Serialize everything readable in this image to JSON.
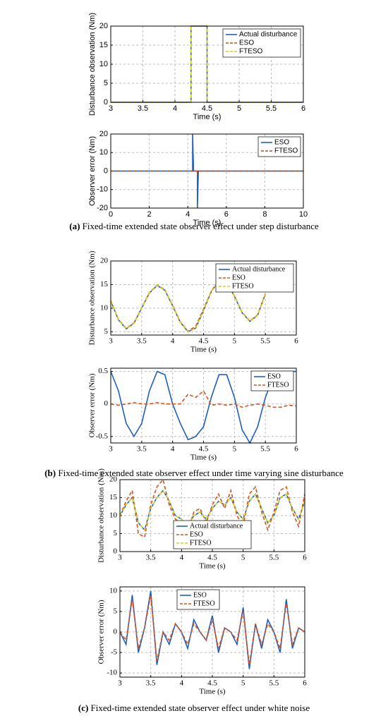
{
  "chart_data": [
    {
      "type": "line",
      "xlabel": "Time (s)",
      "ylabel": "Disturbance observation (Nm)",
      "xlim": [
        3,
        6
      ],
      "ylim": [
        0,
        20
      ],
      "xticks": [
        3,
        3.5,
        4,
        4.5,
        5,
        5.5,
        6
      ],
      "yticks": [
        0,
        5,
        10,
        15,
        20
      ],
      "grid": true,
      "legend": "upper right",
      "x": [
        3,
        4.25,
        4.25,
        4.5,
        4.5,
        6
      ],
      "series": [
        {
          "name": "Actual disturbance",
          "color": "#1f5fbf",
          "style": "solid",
          "values": [
            0,
            0,
            20,
            20,
            0,
            0
          ]
        },
        {
          "name": "ESO",
          "color": "#8a6a10",
          "style": "dashed",
          "values": [
            0,
            0,
            20,
            20,
            0,
            0
          ]
        },
        {
          "name": "FTESO",
          "color": "#d4d41e",
          "style": "dashed",
          "values": [
            0,
            0,
            20,
            20,
            0,
            0
          ]
        }
      ]
    },
    {
      "type": "line",
      "xlabel": "Time (s)",
      "ylabel": "Observer error (Nm)",
      "xlim": [
        0,
        10
      ],
      "ylim": [
        -20,
        20
      ],
      "xticks": [
        0,
        2,
        4,
        6,
        8,
        10
      ],
      "yticks": [
        -20,
        -10,
        0,
        10,
        20
      ],
      "grid": true,
      "legend": "upper right",
      "x": [
        0,
        4.25,
        4.25,
        4.3,
        4.5,
        4.5,
        4.55,
        10
      ],
      "series": [
        {
          "name": "ESO",
          "color": "#1f5fbf",
          "style": "solid",
          "values": [
            0,
            0,
            20,
            0,
            0,
            -20,
            0,
            0
          ]
        },
        {
          "name": "FTESO",
          "color": "#a0522d",
          "style": "dashed",
          "values": [
            0,
            0,
            2,
            0,
            0,
            -2,
            0,
            0
          ]
        }
      ]
    },
    {
      "type": "line",
      "xlabel": "Time (s)",
      "ylabel": "Disturbance observation (Nm)",
      "xlim": [
        3,
        6
      ],
      "ylim": [
        4.3,
        20
      ],
      "xticks": [
        3,
        3.5,
        4,
        4.5,
        5,
        5.5,
        6
      ],
      "yticks": [
        5,
        10,
        15,
        20
      ],
      "grid": true,
      "legend": "upper right",
      "x": [
        3,
        3.125,
        3.25,
        3.375,
        3.5,
        3.625,
        3.75,
        3.875,
        4,
        4.125,
        4.25,
        4.375,
        4.5,
        4.625,
        4.75,
        4.875,
        5,
        5.125,
        5.25,
        5.375,
        5.5
      ],
      "series": [
        {
          "name": "Actual disturbance",
          "color": "#1f5fbf",
          "style": "solid",
          "values": [
            11.5,
            7.5,
            5.6,
            6.8,
            10,
            13.2,
            14.8,
            13.8,
            10.5,
            7,
            5,
            5.8,
            9.5,
            13.5,
            15.8,
            15.5,
            12.5,
            9,
            7.2,
            8.5,
            13
          ]
        },
        {
          "name": "ESO",
          "color": "#d9531e",
          "style": "dashed",
          "values": [
            11.6,
            7.6,
            5.7,
            6.9,
            10.1,
            13.3,
            14.9,
            13.9,
            10.6,
            7.1,
            5.1,
            6.2,
            9.8,
            13.6,
            15.9,
            15.6,
            12.6,
            9.1,
            7.3,
            8.6,
            13.1
          ]
        },
        {
          "name": "FTESO",
          "color": "#d4d41e",
          "style": "dashed",
          "values": [
            11.5,
            7.5,
            5.6,
            6.8,
            10,
            13.2,
            14.8,
            13.8,
            10.5,
            7,
            5,
            5.8,
            9.5,
            13.5,
            15.8,
            15.5,
            12.5,
            9,
            7.2,
            8.5,
            13
          ]
        }
      ]
    },
    {
      "type": "line",
      "xlabel": "Time (s)",
      "ylabel": "Observer error (Nm)",
      "xlim": [
        3,
        6
      ],
      "ylim": [
        -0.6,
        0.55
      ],
      "xticks": [
        3,
        3.5,
        4,
        4.5,
        5,
        5.5,
        6
      ],
      "yticks": [
        -0.5,
        0,
        0.5
      ],
      "grid": true,
      "legend": "upper right",
      "x": [
        3,
        3.125,
        3.25,
        3.375,
        3.5,
        3.625,
        3.75,
        3.875,
        4,
        4.125,
        4.25,
        4.375,
        4.5,
        4.625,
        4.75,
        4.875,
        5,
        5.125,
        5.25,
        5.375,
        5.5,
        5.625,
        5.75,
        5.875,
        6
      ],
      "series": [
        {
          "name": "ESO",
          "color": "#1f5fbf",
          "style": "solid",
          "values": [
            0.5,
            0.2,
            -0.3,
            -0.5,
            -0.3,
            0.2,
            0.5,
            0.45,
            0,
            -0.3,
            -0.55,
            -0.5,
            -0.35,
            0.1,
            0.45,
            0.45,
            0.1,
            -0.4,
            -0.6,
            -0.35,
            0.1,
            0.4,
            0.5,
            0.5,
            0.5
          ]
        },
        {
          "name": "FTESO",
          "color": "#d9531e",
          "style": "dashed",
          "values": [
            0,
            -0.02,
            0,
            0.02,
            0,
            0,
            0.02,
            0,
            0,
            0,
            0.15,
            0.1,
            0.2,
            -0.02,
            0,
            -0.02,
            0,
            -0.05,
            -0.02,
            0,
            -0.02,
            -0.05,
            -0.05,
            -0.02,
            -0.03
          ]
        }
      ]
    },
    {
      "type": "line",
      "xlabel": "Time (s)",
      "ylabel": "Disturbance observation (Nm)",
      "xlim": [
        3,
        6
      ],
      "ylim": [
        0,
        20
      ],
      "xticks": [
        3,
        3.5,
        4,
        4.5,
        5,
        5.5,
        6
      ],
      "yticks": [
        0,
        5,
        10,
        15,
        20
      ],
      "grid": true,
      "legend": "lower center",
      "x": [
        3,
        3.1,
        3.2,
        3.3,
        3.4,
        3.5,
        3.6,
        3.7,
        3.8,
        3.9,
        4,
        4.1,
        4.2,
        4.3,
        4.4,
        4.5,
        4.6,
        4.7,
        4.8,
        4.9,
        5,
        5.1,
        5.2,
        5.3,
        5.4,
        5.5,
        5.6,
        5.7,
        5.8,
        5.9,
        6
      ],
      "series": [
        {
          "name": "Actual disturbance",
          "color": "#1f5fbf",
          "style": "solid",
          "values": [
            10,
            13,
            15,
            8,
            6,
            12,
            15,
            17,
            14,
            10,
            9,
            7,
            10,
            11,
            9,
            12,
            14,
            13,
            15,
            11,
            9,
            14,
            16,
            12,
            8,
            10,
            15,
            16,
            12,
            9,
            14
          ]
        },
        {
          "name": "ESO",
          "color": "#d9531e",
          "style": "dashed",
          "values": [
            10,
            14,
            17,
            5,
            4,
            13,
            18,
            20,
            13,
            9,
            8,
            6,
            11,
            12,
            8,
            13,
            16,
            12,
            17,
            10,
            7,
            16,
            18,
            11,
            6,
            11,
            17,
            18,
            11,
            7,
            16
          ]
        },
        {
          "name": "FTESO",
          "color": "#d4d41e",
          "style": "dashed",
          "values": [
            10,
            13,
            15,
            8,
            6,
            12,
            15,
            17,
            14,
            10,
            9,
            7,
            10,
            11,
            9,
            12,
            14,
            13,
            15,
            11,
            9,
            14,
            16,
            12,
            8,
            10,
            15,
            16,
            12,
            9,
            14
          ]
        }
      ]
    },
    {
      "type": "line",
      "xlabel": "Time (s)",
      "ylabel": "Observer error (Nm)",
      "xlim": [
        3,
        6
      ],
      "ylim": [
        -11,
        11
      ],
      "xticks": [
        3,
        3.5,
        4,
        4.5,
        5,
        5.5,
        6
      ],
      "yticks": [
        -10,
        -5,
        0,
        5,
        10
      ],
      "grid": true,
      "legend": "upper center",
      "x": [
        3,
        3.1,
        3.2,
        3.3,
        3.4,
        3.5,
        3.6,
        3.7,
        3.8,
        3.9,
        4,
        4.1,
        4.2,
        4.3,
        4.4,
        4.5,
        4.6,
        4.7,
        4.8,
        4.9,
        5,
        5.1,
        5.2,
        5.3,
        5.4,
        5.5,
        5.6,
        5.7,
        5.8,
        5.9,
        6
      ],
      "series": [
        {
          "name": "ESO",
          "color": "#1f5fbf",
          "style": "solid",
          "values": [
            0,
            -3,
            9,
            -5,
            1,
            10,
            -8,
            0,
            -3,
            2,
            0,
            -4,
            3,
            0,
            -2,
            4,
            -5,
            1,
            0,
            -3,
            6,
            -9,
            2,
            -4,
            3,
            0,
            -5,
            8,
            -4,
            1,
            0
          ]
        },
        {
          "name": "FTESO",
          "color": "#d9531e",
          "style": "dashed",
          "values": [
            0,
            -2,
            8,
            -4,
            1,
            9,
            -7,
            0,
            -2,
            2,
            0,
            -3,
            2,
            0,
            -2,
            3,
            -4,
            1,
            0,
            -2,
            5,
            -8,
            2,
            -3,
            2,
            0,
            -4,
            7,
            -3,
            1,
            0
          ]
        }
      ]
    }
  ],
  "captions": [
    {
      "label": "(a)",
      "text": "Fixed-time extended state observer effect under step disturbance"
    },
    {
      "label": "(b)",
      "text": "Fixed-time extended state observer effect under time varying sine disturbance"
    },
    {
      "label": "(c)",
      "text": "Fixed-time extended state observer effect under white noise"
    }
  ]
}
